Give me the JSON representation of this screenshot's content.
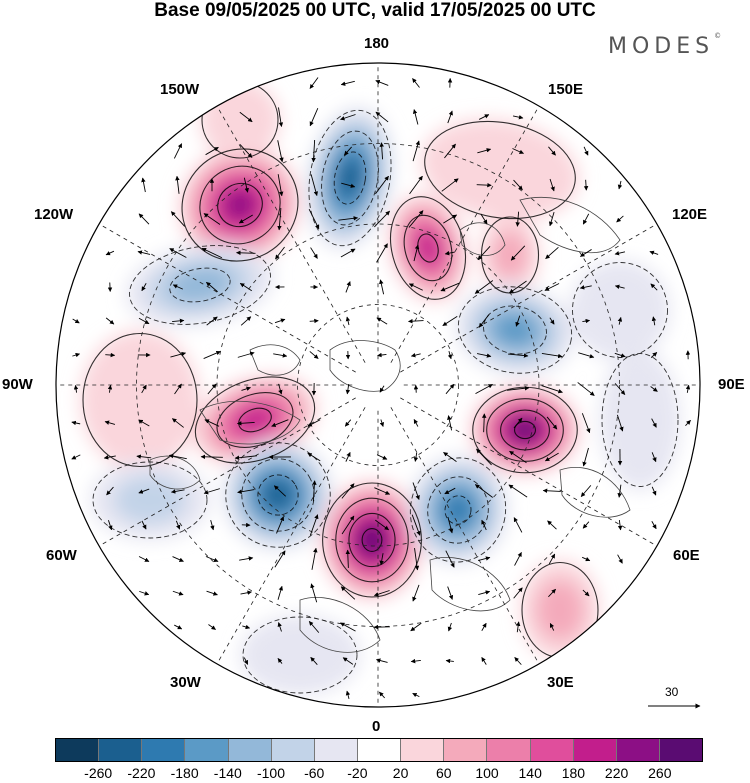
{
  "title": "Base 09/05/2025 00 UTC, valid 17/05/2025 00 UTC",
  "brand": "MODES",
  "brand_mark": "©",
  "map": {
    "projection": "north-polar-stereographic",
    "longitude_labels": {
      "top": "180",
      "bottom": "0",
      "left": "90W",
      "right": "90E",
      "w150": "150W",
      "e150": "150E",
      "w120": "120W",
      "e120": "120E",
      "w60": "60W",
      "e60": "60E",
      "w30": "30W",
      "e30": "30E"
    },
    "field_description": "anomaly shading with wind vectors",
    "reference_vector": "30"
  },
  "colorbar": {
    "colors": [
      "#0d3a5c",
      "#1b5f8f",
      "#2e7ab0",
      "#5b9ac6",
      "#93b8d9",
      "#c2d3e8",
      "#e6e6f2",
      "#ffffff",
      "#fad6dc",
      "#f4aabb",
      "#ec7faa",
      "#e04e9c",
      "#c21e8c",
      "#8c0f85",
      "#5a0c72"
    ],
    "ticks": [
      "-260",
      "-220",
      "-180",
      "-140",
      "-100",
      "-60",
      "-20",
      "20",
      "60",
      "100",
      "140",
      "180",
      "220",
      "260"
    ]
  }
}
